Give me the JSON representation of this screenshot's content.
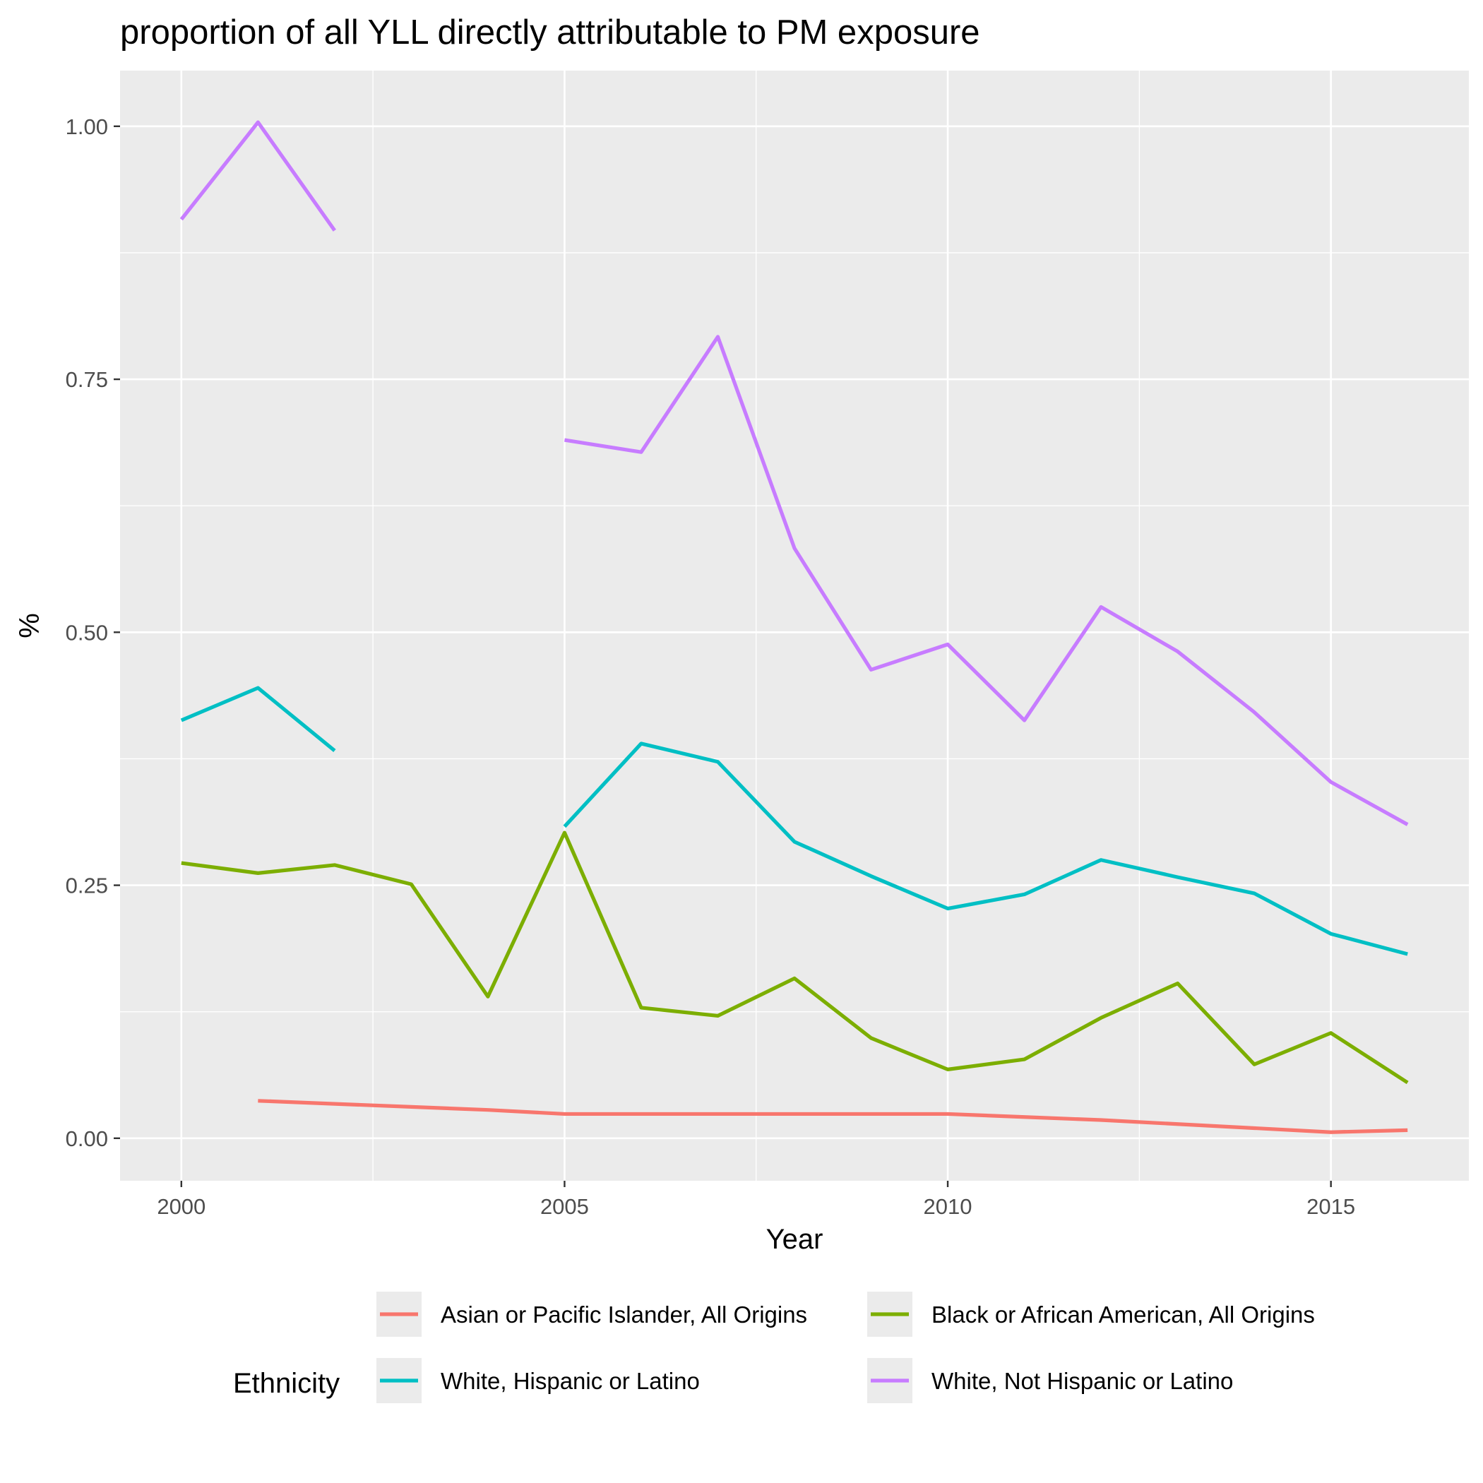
{
  "chart_data": {
    "type": "line",
    "title": "proportion of all YLL directly attributable to PM exposure",
    "xlabel": "Year",
    "ylabel": "%",
    "xlim": [
      1999.2,
      2016.8
    ],
    "ylim": [
      -0.042,
      1.055
    ],
    "x_ticks": [
      2000,
      2005,
      2010,
      2015
    ],
    "x_tick_labels": [
      "2000",
      "2005",
      "2010",
      "2015"
    ],
    "y_ticks": [
      0.0,
      0.25,
      0.5,
      0.75,
      1.0
    ],
    "y_tick_labels": [
      "0.00",
      "0.25",
      "0.50",
      "0.75",
      "1.00"
    ],
    "grid": true,
    "legend": {
      "title": "Ethnicity",
      "position": "bottom",
      "ncol": 2
    },
    "series": [
      {
        "name": "Asian or Pacific Islander, All Origins",
        "color": "#F8766D",
        "x": [
          2001,
          2002,
          2003,
          2004,
          2005,
          2006,
          2007,
          2008,
          2009,
          2010,
          2011,
          2012,
          2013,
          2014,
          2015,
          2016
        ],
        "values": [
          0.037,
          0.034,
          0.031,
          0.028,
          0.024,
          0.024,
          0.024,
          0.024,
          0.024,
          0.024,
          0.021,
          0.018,
          0.014,
          0.01,
          0.006,
          0.008
        ]
      },
      {
        "name": "Black or African American, All Origins",
        "color": "#7CAE00",
        "x": [
          2000,
          2001,
          2002,
          2003,
          2004,
          2005,
          2006,
          2007,
          2008,
          2009,
          2010,
          2011,
          2012,
          2013,
          2014,
          2015,
          2016
        ],
        "values": [
          0.272,
          0.262,
          0.27,
          0.251,
          0.14,
          0.302,
          0.129,
          0.121,
          0.158,
          0.099,
          0.068,
          0.078,
          0.119,
          0.153,
          0.073,
          0.104,
          0.055
        ]
      },
      {
        "name": "White, Hispanic or Latino",
        "color": "#00BFC4",
        "x": [
          2000,
          2001,
          2002,
          null,
          2005,
          2006,
          2007,
          2008,
          2009,
          2010,
          2011,
          2012,
          2013,
          2014,
          2015,
          2016
        ],
        "values": [
          0.413,
          0.445,
          0.383,
          null,
          0.308,
          0.39,
          0.372,
          0.293,
          0.259,
          0.227,
          0.241,
          0.275,
          0.258,
          0.242,
          0.202,
          0.182
        ]
      },
      {
        "name": "White, Not Hispanic or Latino",
        "color": "#C77CFF",
        "x": [
          2000,
          2001,
          2002,
          null,
          2005,
          2006,
          2007,
          2008,
          2009,
          2010,
          2011,
          2012,
          2013,
          2014,
          2015,
          2016
        ],
        "values": [
          0.908,
          1.004,
          0.897,
          null,
          0.69,
          0.678,
          0.792,
          0.583,
          0.463,
          0.488,
          0.413,
          0.525,
          0.481,
          0.421,
          0.352,
          0.31
        ]
      }
    ]
  }
}
